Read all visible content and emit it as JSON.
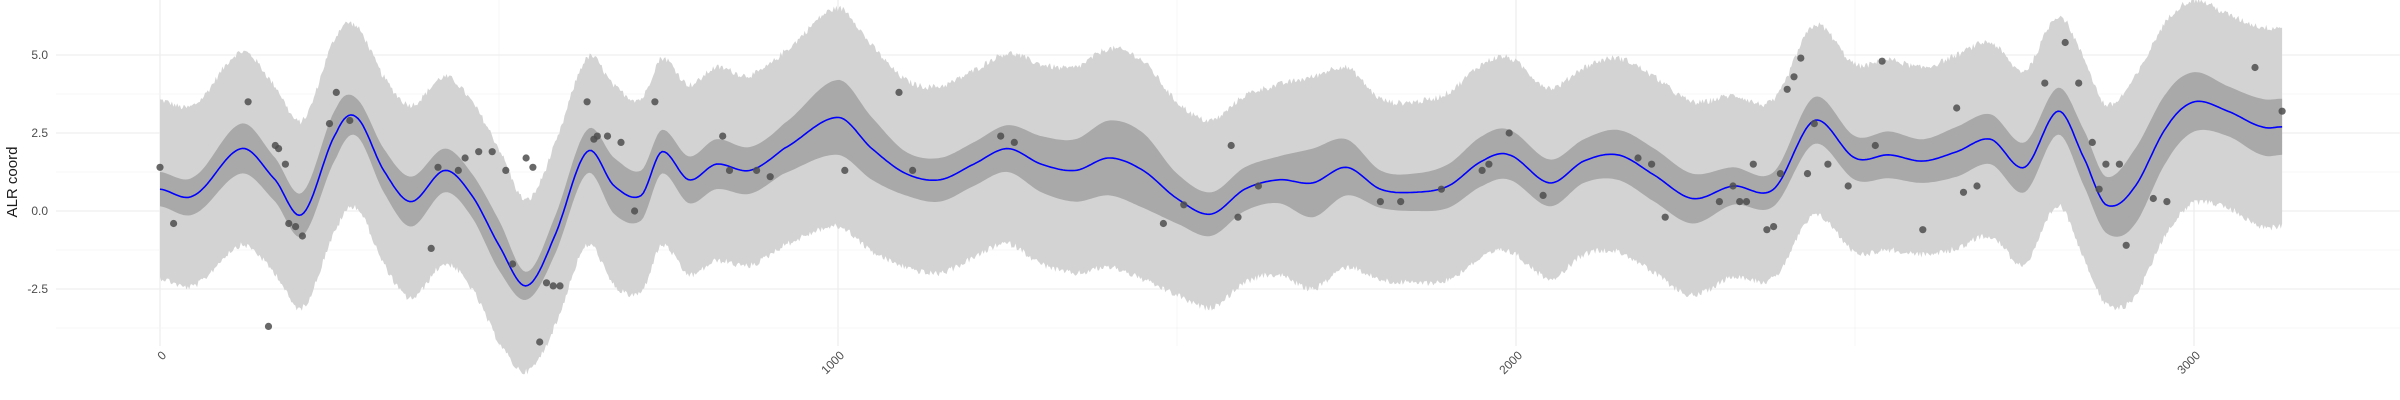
{
  "chart_data": {
    "type": "line",
    "title": "",
    "xlabel": "",
    "ylabel": "ALR coord",
    "xlim": [
      -60,
      3200
    ],
    "ylim": [
      -4.3,
      6.3
    ],
    "x_major_ticks": [
      0,
      1000,
      2000,
      3000
    ],
    "x_tick_labels": [
      "0",
      "1000",
      "2000",
      "3000"
    ],
    "y_major_ticks": [
      -2.5,
      0.0,
      2.5,
      5.0
    ],
    "y_tick_labels": [
      "-2.5",
      "0.0",
      "2.5",
      "5.0"
    ],
    "grid": true,
    "legend": "none",
    "colors": {
      "mean_line": "#0000ff",
      "inner_band": "#a9a9a9",
      "outer_band": "#d3d3d3",
      "points": "#4d4d4d",
      "grid": "#ebebeb"
    },
    "x_range": [
      0,
      3130
    ],
    "outer_band_spread": 2.3,
    "outer_band_jitter": 0.2,
    "mean_curve": {
      "x": [
        0,
        50,
        120,
        170,
        210,
        260,
        290,
        330,
        370,
        420,
        460,
        500,
        540,
        580,
        630,
        670,
        710,
        740,
        780,
        820,
        870,
        920,
        1000,
        1050,
        1100,
        1150,
        1200,
        1250,
        1300,
        1350,
        1400,
        1450,
        1500,
        1550,
        1600,
        1650,
        1700,
        1750,
        1800,
        1850,
        1900,
        1950,
        1990,
        2050,
        2100,
        2150,
        2200,
        2260,
        2320,
        2380,
        2440,
        2500,
        2550,
        2600,
        2650,
        2700,
        2750,
        2800,
        2840,
        2870,
        2910,
        2960,
        3000,
        3050,
        3100,
        3130
      ],
      "y": [
        0.7,
        0.5,
        2.0,
        1.0,
        -0.1,
        2.5,
        3.0,
        1.3,
        0.3,
        1.3,
        0.5,
        -1.1,
        -2.4,
        -0.9,
        1.9,
        0.8,
        0.5,
        1.9,
        1.0,
        1.5,
        1.3,
        2.0,
        3.0,
        2.0,
        1.2,
        1.0,
        1.5,
        2.0,
        1.5,
        1.3,
        1.7,
        1.3,
        0.4,
        -0.1,
        0.7,
        1.0,
        0.9,
        1.4,
        0.7,
        0.6,
        0.8,
        1.6,
        1.8,
        0.9,
        1.6,
        1.8,
        1.2,
        0.4,
        0.8,
        0.7,
        2.9,
        1.7,
        1.8,
        1.6,
        1.9,
        2.3,
        1.4,
        3.2,
        1.6,
        0.2,
        0.7,
        2.7,
        3.5,
        3.2,
        2.7,
        2.7
      ],
      "inner_half_width": [
        0.55,
        0.6,
        0.8,
        0.7,
        0.7,
        0.8,
        0.6,
        0.7,
        0.8,
        0.7,
        0.7,
        0.8,
        0.45,
        0.6,
        0.7,
        0.9,
        0.8,
        0.7,
        0.75,
        0.8,
        0.75,
        0.8,
        1.2,
        1.0,
        0.7,
        0.7,
        0.7,
        0.75,
        0.9,
        1.0,
        1.2,
        1.2,
        0.8,
        0.7,
        0.7,
        0.75,
        1.1,
        0.9,
        0.6,
        0.6,
        0.7,
        0.8,
        0.8,
        0.75,
        0.7,
        0.8,
        0.85,
        0.8,
        0.6,
        0.55,
        0.75,
        0.7,
        0.75,
        0.7,
        0.8,
        0.8,
        0.8,
        0.75,
        0.9,
        0.9,
        1.2,
        1.1,
        0.95,
        0.8,
        0.9,
        0.9
      ]
    },
    "points": {
      "x": [
        0,
        20,
        130,
        160,
        170,
        175,
        185,
        190,
        200,
        210,
        250,
        260,
        280,
        400,
        410,
        440,
        450,
        470,
        490,
        510,
        520,
        540,
        550,
        560,
        570,
        580,
        590,
        630,
        640,
        645,
        660,
        680,
        700,
        730,
        830,
        840,
        880,
        900,
        1010,
        1090,
        1110,
        1240,
        1260,
        1480,
        1510,
        1580,
        1590,
        1620,
        1800,
        1830,
        1890,
        1950,
        1960,
        1990,
        2040,
        2180,
        2200,
        2220,
        2300,
        2320,
        2330,
        2340,
        2350,
        2370,
        2380,
        2390,
        2400,
        2410,
        2420,
        2430,
        2440,
        2460,
        2490,
        2530,
        2540,
        2600,
        2650,
        2660,
        2680,
        2780,
        2810,
        2830,
        2850,
        2860,
        2870,
        2890,
        2900,
        2940,
        2960,
        3090,
        3130
      ],
      "y": [
        1.4,
        -0.4,
        3.5,
        -3.7,
        2.1,
        2.0,
        1.5,
        -0.4,
        -0.5,
        -0.8,
        2.8,
        3.8,
        2.9,
        -1.2,
        1.4,
        1.3,
        1.7,
        1.9,
        1.9,
        1.3,
        -1.7,
        1.7,
        1.4,
        -4.2,
        -2.3,
        -2.4,
        -2.4,
        3.5,
        2.3,
        2.4,
        2.4,
        2.2,
        0.0,
        3.5,
        2.4,
        1.3,
        1.3,
        1.1,
        1.3,
        3.8,
        1.3,
        2.4,
        2.2,
        -0.4,
        0.2,
        2.1,
        -0.2,
        0.8,
        0.3,
        0.3,
        0.7,
        1.3,
        1.5,
        2.5,
        0.5,
        1.7,
        1.5,
        -0.2,
        0.3,
        0.8,
        0.3,
        0.3,
        1.5,
        -0.6,
        -0.5,
        1.2,
        3.9,
        4.3,
        4.9,
        1.2,
        2.8,
        1.5,
        0.8,
        2.1,
        4.8,
        -0.6,
        3.3,
        0.6,
        0.8,
        4.1,
        5.4,
        4.1,
        2.2,
        0.7,
        1.5,
        1.5,
        -1.1,
        0.4,
        0.3,
        4.6,
        3.2
      ]
    }
  }
}
